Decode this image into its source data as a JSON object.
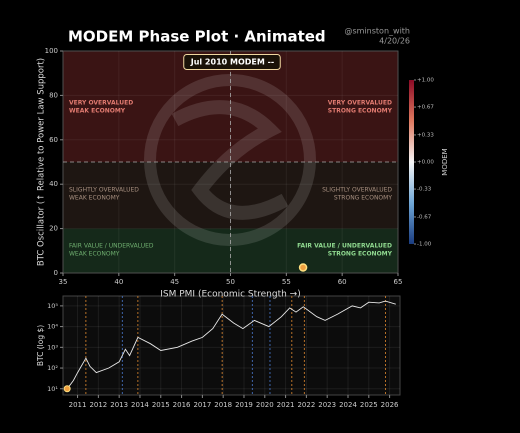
{
  "chart_data": [
    {
      "type": "scatter",
      "title": "MODEM Phase Plot · Animated",
      "handle": "@sminston_with",
      "date": "4/20/26",
      "annotation": "Jul 2010   MODEM --",
      "x_label": "ISM PMI  (Economic Strength →)",
      "y_label": "BTC Oscillator  (↑ Relative to Power Law Support)",
      "xlim": [
        35,
        65
      ],
      "xticks": [
        35,
        40,
        45,
        50,
        55,
        60,
        65
      ],
      "ylim": [
        0,
        100
      ],
      "yticks": [
        0,
        20,
        40,
        60,
        80,
        100
      ],
      "grid": true,
      "crosshair": [
        50,
        50
      ],
      "zones": [
        {
          "from": 50,
          "to": 100,
          "color": "#3a1414"
        },
        {
          "from": 20,
          "to": 50,
          "color": "#1e1612"
        },
        {
          "from": 0,
          "to": 20,
          "color": "#15291a"
        }
      ],
      "quadrant_labels": [
        {
          "lines": [
            "VERY OVERVALUED",
            "WEAK ECONOMY"
          ],
          "color": "#e07a70"
        },
        {
          "lines": [
            "VERY OVERVALUED",
            "STRONG ECONOMY"
          ],
          "color": "#e07a70"
        },
        {
          "lines": [
            "SLIGHTLY OVERVALUED",
            "WEAK ECONOMY"
          ],
          "color": "#a89080"
        },
        {
          "lines": [
            "SLIGHTLY OVERVALUED",
            "STRONG ECONOMY"
          ],
          "color": "#a89080"
        },
        {
          "lines": [
            "FAIR VALUE / UNDERVALUED",
            "WEAK ECONOMY"
          ],
          "color": "#6fae6f"
        },
        {
          "lines": [
            "FAIR VALUE / UNDERVALUED",
            "STRONG ECONOMY"
          ],
          "color": "#8fd88f"
        }
      ],
      "x": [
        56.5
      ],
      "values": [
        2.5
      ],
      "color": "#f0a040",
      "colorbar": {
        "label": "MODEM",
        "lim": [
          -1,
          1
        ],
        "ticks": [
          {
            "value": 1,
            "label": "+1.00"
          },
          {
            "value": 0.67,
            "label": "+0.67"
          },
          {
            "value": 0.33,
            "label": "+0.33"
          },
          {
            "value": 0,
            "label": "+0.00"
          },
          {
            "value": -0.33,
            "label": "-0.33"
          },
          {
            "value": -0.67,
            "label": "-0.67"
          },
          {
            "value": -1,
            "label": "-1.00"
          }
        ]
      }
    },
    {
      "type": "line",
      "y_label": "BTC (log $)",
      "log_scale": true,
      "grid": true,
      "xlim": [
        2010.3,
        2026.5
      ],
      "xticks": [
        2011,
        2012,
        2013,
        2014,
        2015,
        2016,
        2017,
        2018,
        2019,
        2020,
        2021,
        2022,
        2023,
        2024,
        2025,
        2026
      ],
      "ylim": [
        5,
        300000
      ],
      "yticks": [
        {
          "value": 10,
          "label": "10¹"
        },
        {
          "value": 100,
          "label": "10²"
        },
        {
          "value": 1000,
          "label": "10³"
        },
        {
          "value": 10000,
          "label": "10⁴"
        },
        {
          "value": 100000,
          "label": "10⁵"
        }
      ],
      "x": [
        2010.5,
        2010.8,
        2011.0,
        2011.4,
        2011.6,
        2011.9,
        2012.5,
        2013.0,
        2013.3,
        2013.5,
        2013.9,
        2014.5,
        2015.0,
        2015.8,
        2016.5,
        2017.0,
        2017.5,
        2017.95,
        2018.5,
        2018.95,
        2019.5,
        2020.2,
        2020.8,
        2021.2,
        2021.5,
        2021.85,
        2022.5,
        2022.9,
        2023.5,
        2024.2,
        2024.6,
        2025.0,
        2025.5,
        2025.8,
        2026.3
      ],
      "values": [
        10,
        25,
        60,
        300,
        120,
        60,
        100,
        200,
        800,
        400,
        3000,
        1500,
        700,
        1000,
        2000,
        3000,
        8000,
        40000,
        15000,
        8000,
        20000,
        10000,
        30000,
        80000,
        50000,
        90000,
        30000,
        20000,
        40000,
        100000,
        80000,
        150000,
        140000,
        170000,
        120000
      ],
      "color": "#e8e8e8",
      "vlines": [
        {
          "x": 2011.4,
          "color": "#e08a30"
        },
        {
          "x": 2013.15,
          "color": "#4a7ad0"
        },
        {
          "x": 2013.9,
          "color": "#e08a30"
        },
        {
          "x": 2017.95,
          "color": "#e08a30"
        },
        {
          "x": 2019.4,
          "color": "#4a7ad0"
        },
        {
          "x": 2020.25,
          "color": "#4a7ad0"
        },
        {
          "x": 2021.3,
          "color": "#e08a30"
        },
        {
          "x": 2021.9,
          "color": "#e08a30"
        },
        {
          "x": 2025.8,
          "color": "#e08a30"
        }
      ],
      "marker": {
        "x": 2010.5,
        "value": 10,
        "color": "#f0a040"
      }
    }
  ]
}
